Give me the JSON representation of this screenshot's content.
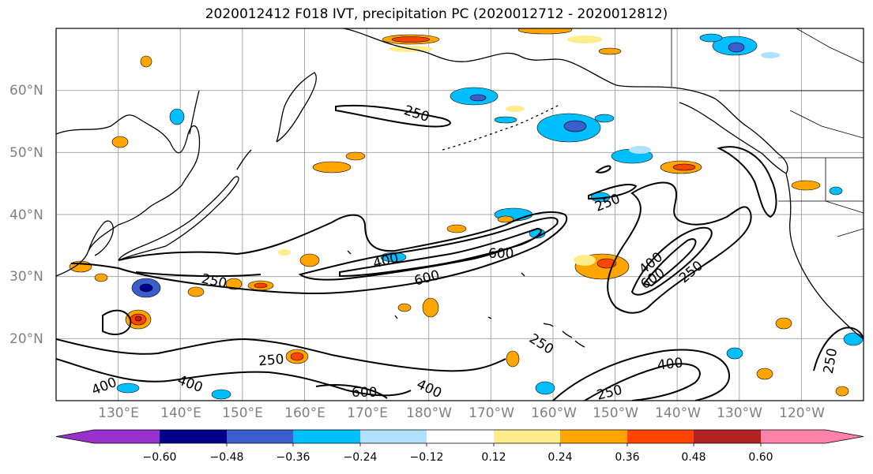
{
  "title": "2020012412 F018 IVT, precipitation PC (2020012712 - 2020012812)",
  "map": {
    "projection": "PlateCarree",
    "extent": {
      "lon_min": 120,
      "lon_max": 250,
      "lat_min": 10,
      "lat_max": 70
    },
    "gridlines": true,
    "lat_labels": [
      "20°N",
      "30°N",
      "40°N",
      "50°N",
      "60°N"
    ],
    "lon_labels": [
      "130°E",
      "140°E",
      "150°E",
      "160°E",
      "170°E",
      "180°W",
      "170°W",
      "160°W",
      "150°W",
      "140°W",
      "130°W",
      "120°W"
    ],
    "ivt_contour_levels": [
      250,
      400,
      600
    ],
    "contour_labels": [
      "250",
      "250",
      "250",
      "250",
      "250",
      "250",
      "250",
      "400",
      "400",
      "400",
      "400",
      "400",
      "400",
      "600",
      "600",
      "600",
      "600"
    ]
  },
  "colorbar": {
    "ticks": [
      "−0.60",
      "−0.48",
      "−0.36",
      "−0.24",
      "−0.12",
      "0.12",
      "0.24",
      "0.36",
      "0.48",
      "0.60"
    ],
    "colors": [
      "#9932CC",
      "#00008B",
      "#3A5FCD",
      "#00BFFF",
      "#B0E2FF",
      "#FFFFFF",
      "#FFEC8B",
      "#FFA500",
      "#FF4500",
      "#B22222",
      "#FF82AB"
    ],
    "extend": "both"
  }
}
